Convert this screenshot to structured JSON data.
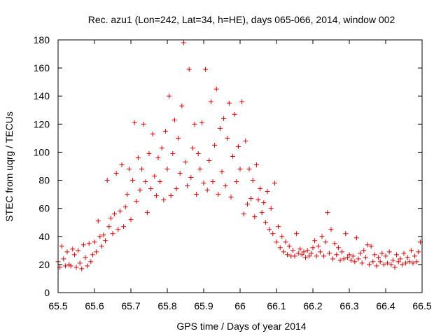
{
  "chart_data": {
    "type": "scatter",
    "title": "Rec. azu1 (Lon=242, Lat=34, h=HE), days 065-066, 2014, window 002",
    "xlabel": "GPS time / Days of year 2014",
    "ylabel": "STEC from uqrg / TECUs",
    "xlim": [
      65.5,
      66.5
    ],
    "ylim": [
      0,
      180
    ],
    "xticks": [
      65.5,
      65.6,
      65.7,
      65.8,
      65.9,
      66,
      66.1,
      66.2,
      66.3,
      66.4,
      66.5
    ],
    "xtick_labels": [
      "65.5",
      "65.6",
      "65.7",
      "65.8",
      "65.9",
      "66",
      "66.1",
      "66.2",
      "66.3",
      "66.4",
      "66.5"
    ],
    "yticks": [
      0,
      20,
      40,
      60,
      80,
      100,
      120,
      140,
      160,
      180
    ],
    "ytick_labels": [
      "0",
      "20",
      "40",
      "60",
      "80",
      "100",
      "120",
      "140",
      "160",
      "180"
    ],
    "marker": "+",
    "color": "#d40000",
    "grid": false,
    "series": [
      {
        "name": "STEC",
        "points": [
          [
            65.5,
            22
          ],
          [
            65.505,
            18
          ],
          [
            65.51,
            33
          ],
          [
            65.515,
            24
          ],
          [
            65.52,
            19
          ],
          [
            65.525,
            29
          ],
          [
            65.53,
            20
          ],
          [
            65.535,
            19
          ],
          [
            65.54,
            31
          ],
          [
            65.545,
            27
          ],
          [
            65.55,
            18
          ],
          [
            65.555,
            30
          ],
          [
            65.56,
            21
          ],
          [
            65.565,
            17
          ],
          [
            65.57,
            34
          ],
          [
            65.575,
            25
          ],
          [
            65.58,
            19
          ],
          [
            65.585,
            35
          ],
          [
            65.59,
            22
          ],
          [
            65.595,
            27
          ],
          [
            65.6,
            36
          ],
          [
            65.605,
            29
          ],
          [
            65.61,
            51
          ],
          [
            65.615,
            40
          ],
          [
            65.62,
            33
          ],
          [
            65.625,
            41
          ],
          [
            65.63,
            37
          ],
          [
            65.635,
            80
          ],
          [
            65.64,
            47
          ],
          [
            65.645,
            53
          ],
          [
            65.65,
            42
          ],
          [
            65.655,
            56
          ],
          [
            65.66,
            85
          ],
          [
            65.665,
            45
          ],
          [
            65.67,
            58
          ],
          [
            65.675,
            91
          ],
          [
            65.68,
            47
          ],
          [
            65.685,
            61
          ],
          [
            65.69,
            70
          ],
          [
            65.695,
            88
          ],
          [
            65.7,
            52
          ],
          [
            65.705,
            80
          ],
          [
            65.71,
            121
          ],
          [
            65.715,
            65
          ],
          [
            65.72,
            96
          ],
          [
            65.725,
            73
          ],
          [
            65.73,
            88
          ],
          [
            65.735,
            120
          ],
          [
            65.74,
            79
          ],
          [
            65.745,
            57
          ],
          [
            65.75,
            99
          ],
          [
            65.755,
            74
          ],
          [
            65.76,
            113
          ],
          [
            65.765,
            83
          ],
          [
            65.77,
            69
          ],
          [
            65.775,
            96
          ],
          [
            65.78,
            79
          ],
          [
            65.785,
            103
          ],
          [
            65.79,
            66
          ],
          [
            65.795,
            115
          ],
          [
            65.8,
            88
          ],
          [
            65.805,
            140
          ],
          [
            65.81,
            69
          ],
          [
            65.815,
            99
          ],
          [
            65.82,
            123
          ],
          [
            65.825,
            74
          ],
          [
            65.83,
            110
          ],
          [
            65.835,
            85
          ],
          [
            65.84,
            133
          ],
          [
            65.845,
            178
          ],
          [
            65.85,
            93
          ],
          [
            65.855,
            76
          ],
          [
            65.86,
            159
          ],
          [
            65.865,
            82
          ],
          [
            65.87,
            103
          ],
          [
            65.875,
            120
          ],
          [
            65.88,
            70
          ],
          [
            65.885,
            99
          ],
          [
            65.89,
            88
          ],
          [
            65.895,
            121
          ],
          [
            65.9,
            78
          ],
          [
            65.905,
            159
          ],
          [
            65.91,
            73
          ],
          [
            65.915,
            94
          ],
          [
            65.92,
            136
          ],
          [
            65.925,
            79
          ],
          [
            65.93,
            105
          ],
          [
            65.935,
            145
          ],
          [
            65.94,
            70
          ],
          [
            65.945,
            117
          ],
          [
            65.95,
            86
          ],
          [
            65.955,
            124
          ],
          [
            65.96,
            76
          ],
          [
            65.965,
            110
          ],
          [
            65.97,
            135
          ],
          [
            65.975,
            68
          ],
          [
            65.98,
            97
          ],
          [
            65.985,
            127
          ],
          [
            65.99,
            79
          ],
          [
            65.995,
            104
          ],
          [
            66,
            88
          ],
          [
            66.005,
            136
          ],
          [
            66.01,
            56
          ],
          [
            66.015,
            108
          ],
          [
            66.02,
            63
          ],
          [
            66.025,
            88
          ],
          [
            66.03,
            67
          ],
          [
            66.035,
            80
          ],
          [
            66.04,
            54
          ],
          [
            66.045,
            91
          ],
          [
            66.05,
            66
          ],
          [
            66.055,
            74
          ],
          [
            66.06,
            57
          ],
          [
            66.065,
            64
          ],
          [
            66.07,
            50
          ],
          [
            66.075,
            72
          ],
          [
            66.08,
            45
          ],
          [
            66.085,
            60
          ],
          [
            66.09,
            42
          ],
          [
            66.095,
            78
          ],
          [
            66.1,
            36
          ],
          [
            66.105,
            47
          ],
          [
            66.11,
            32
          ],
          [
            66.115,
            40
          ],
          [
            66.12,
            29
          ],
          [
            66.125,
            36
          ],
          [
            66.13,
            27
          ],
          [
            66.135,
            33
          ],
          [
            66.14,
            26
          ],
          [
            66.145,
            30
          ],
          [
            66.15,
            26
          ],
          [
            66.155,
            42
          ],
          [
            66.16,
            28
          ],
          [
            66.165,
            31
          ],
          [
            66.17,
            27
          ],
          [
            66.175,
            29
          ],
          [
            66.18,
            25
          ],
          [
            66.185,
            30
          ],
          [
            66.19,
            26
          ],
          [
            66.195,
            28
          ],
          [
            66.2,
            32
          ],
          [
            66.205,
            37
          ],
          [
            66.21,
            26
          ],
          [
            66.215,
            33
          ],
          [
            66.22,
            29
          ],
          [
            66.225,
            40
          ],
          [
            66.23,
            26
          ],
          [
            66.235,
            36
          ],
          [
            66.24,
            57
          ],
          [
            66.245,
            28
          ],
          [
            66.25,
            45
          ],
          [
            66.255,
            24
          ],
          [
            66.26,
            35
          ],
          [
            66.265,
            27
          ],
          [
            66.27,
            32
          ],
          [
            66.275,
            23
          ],
          [
            66.28,
            29
          ],
          [
            66.285,
            24
          ],
          [
            66.29,
            42
          ],
          [
            66.295,
            25
          ],
          [
            66.3,
            27
          ],
          [
            66.305,
            23
          ],
          [
            66.31,
            26
          ],
          [
            66.315,
            22
          ],
          [
            66.32,
            39
          ],
          [
            66.325,
            24
          ],
          [
            66.33,
            28
          ],
          [
            66.335,
            21
          ],
          [
            66.34,
            30
          ],
          [
            66.345,
            25
          ],
          [
            66.35,
            34
          ],
          [
            66.355,
            20
          ],
          [
            66.36,
            33
          ],
          [
            66.365,
            22
          ],
          [
            66.37,
            27
          ],
          [
            66.375,
            19
          ],
          [
            66.38,
            25
          ],
          [
            66.385,
            22
          ],
          [
            66.39,
            28
          ],
          [
            66.395,
            20
          ],
          [
            66.4,
            26
          ],
          [
            66.405,
            21
          ],
          [
            66.41,
            29
          ],
          [
            66.415,
            20
          ],
          [
            66.42,
            23
          ],
          [
            66.425,
            18
          ],
          [
            66.43,
            27
          ],
          [
            66.435,
            22
          ],
          [
            66.44,
            24
          ],
          [
            66.445,
            20
          ],
          [
            66.45,
            28
          ],
          [
            66.455,
            21
          ],
          [
            66.46,
            25
          ],
          [
            66.465,
            22
          ],
          [
            66.47,
            30
          ],
          [
            66.475,
            21
          ],
          [
            66.48,
            26
          ],
          [
            66.485,
            22
          ],
          [
            66.49,
            29
          ],
          [
            66.495,
            36
          ]
        ]
      }
    ]
  }
}
